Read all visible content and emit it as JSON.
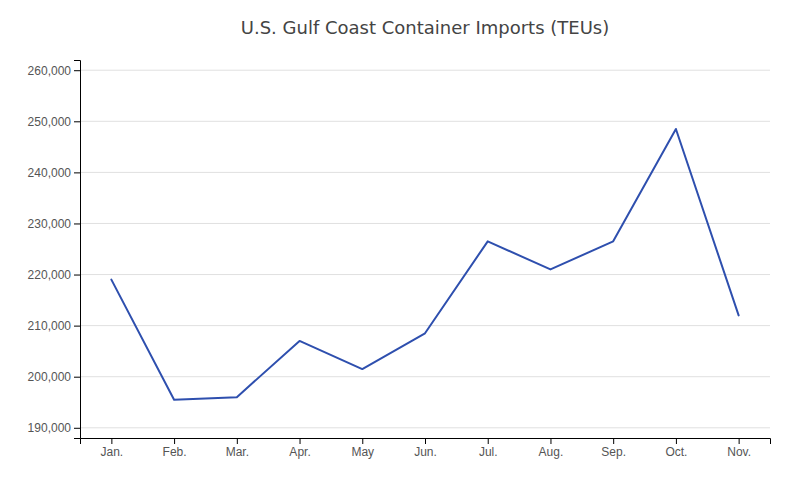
{
  "chart_data": {
    "type": "line",
    "title": "U.S. Gulf Coast Container Imports (TEUs)",
    "categories": [
      "Jan.",
      "Feb.",
      "Mar.",
      "Apr.",
      "May",
      "Jun.",
      "Jul.",
      "Aug.",
      "Sep.",
      "Oct.",
      "Nov."
    ],
    "values": [
      219000,
      195500,
      196000,
      207000,
      201500,
      208500,
      226500,
      221000,
      226500,
      248500,
      212000
    ],
    "color": "#2E4FAE",
    "ylim": [
      188000,
      262000
    ],
    "yticks": [
      {
        "value": 190000,
        "label": "190,000"
      },
      {
        "value": 200000,
        "label": "200,000"
      },
      {
        "value": 210000,
        "label": "210,000"
      },
      {
        "value": 220000,
        "label": "220,000"
      },
      {
        "value": 230000,
        "label": "230,000"
      },
      {
        "value": 240000,
        "label": "240,000"
      },
      {
        "value": 250000,
        "label": "250,000"
      },
      {
        "value": 260000,
        "label": "260,000"
      }
    ],
    "grid": true
  }
}
